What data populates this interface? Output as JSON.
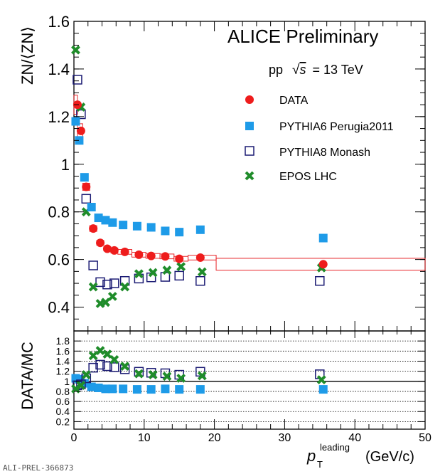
{
  "chart_data": [
    {
      "type": "scatter",
      "panel": "main",
      "title": "ALICE Preliminary",
      "subtitle_prefix": "pp",
      "subtitle_sqrt": "√",
      "subtitle_s": "s",
      "subtitle_suffix": "= 13 TeV",
      "ylabel": "ZN/⟨ZN⟩",
      "ylim": [
        0.3,
        1.6
      ],
      "xlim": [
        0,
        50
      ],
      "yticks": [
        "0.4",
        "0.6",
        "0.8",
        "1",
        "1.2",
        "1.4",
        "1.6"
      ],
      "xticks": [
        "0",
        "10",
        "20",
        "30",
        "40",
        "50"
      ],
      "legend": [
        {
          "key": "data",
          "label": "DATA"
        },
        {
          "key": "p6",
          "label": "PYTHIA6 Perugia2011"
        },
        {
          "key": "p8",
          "label": "PYTHIA8 Monash"
        },
        {
          "key": "epos",
          "label": "EPOS LHC"
        }
      ],
      "series": [
        {
          "name": "DATA",
          "key": "data",
          "color": "#ee1c1c",
          "marker": "circle",
          "x": [
            0.5,
            1.0,
            1.75,
            2.75,
            3.75,
            4.75,
            5.75,
            7.25,
            9.25,
            11.0,
            13.0,
            15.0,
            18.0,
            35.5
          ],
          "values": [
            1.25,
            1.14,
            0.905,
            0.73,
            0.67,
            0.645,
            0.638,
            0.632,
            0.62,
            0.615,
            0.613,
            0.603,
            0.608,
            0.58
          ]
        },
        {
          "name": "PYTHIA6 Perugia2011",
          "key": "p6",
          "color": "#1e9be8",
          "marker": "square",
          "x": [
            0.25,
            0.75,
            1.5,
            2.5,
            3.5,
            4.5,
            5.5,
            7.0,
            9.0,
            11.0,
            13.0,
            15.0,
            18.0,
            35.5
          ],
          "values": [
            1.18,
            1.1,
            0.945,
            0.82,
            0.775,
            0.765,
            0.755,
            0.745,
            0.74,
            0.735,
            0.72,
            0.715,
            0.725,
            0.69
          ]
        },
        {
          "name": "PYTHIA8 Monash",
          "key": "p8",
          "color": "#1c1c74",
          "marker": "open-square",
          "x": [
            0.5,
            1.0,
            1.75,
            2.75,
            3.75,
            4.75,
            5.75,
            7.25,
            9.25,
            11.0,
            13.0,
            15.0,
            18.0,
            35.0
          ],
          "values": [
            1.355,
            1.21,
            0.855,
            0.575,
            0.505,
            0.495,
            0.5,
            0.51,
            0.52,
            0.525,
            0.527,
            0.532,
            0.51,
            0.51
          ]
        },
        {
          "name": "EPOS LHC",
          "key": "epos",
          "color": "#1f8c2a",
          "marker": "x",
          "x": [
            0.25,
            1.0,
            1.75,
            2.75,
            3.75,
            4.5,
            5.5,
            7.25,
            9.25,
            11.25,
            13.25,
            15.25,
            18.25,
            35.25
          ],
          "values": [
            1.48,
            1.24,
            0.8,
            0.485,
            0.415,
            0.42,
            0.445,
            0.485,
            0.54,
            0.545,
            0.555,
            0.57,
            0.548,
            0.565
          ]
        }
      ],
      "data_systematics": [
        {
          "x": [
            0,
            0.5
          ],
          "y": [
            1.21,
            1.29
          ]
        },
        {
          "x": [
            0.5,
            1.25
          ],
          "y": [
            1.11,
            1.17
          ]
        },
        {
          "x": [
            1.25,
            2.25
          ],
          "y": [
            0.89,
            0.92
          ]
        },
        {
          "x": [
            2.25,
            3.25
          ],
          "y": [
            0.718,
            0.742
          ]
        },
        {
          "x": [
            3.25,
            4.25
          ],
          "y": [
            0.66,
            0.68
          ]
        },
        {
          "x": [
            4.25,
            5.25
          ],
          "y": [
            0.636,
            0.654
          ]
        },
        {
          "x": [
            5.25,
            6.25
          ],
          "y": [
            0.628,
            0.648
          ]
        },
        {
          "x": [
            6.25,
            8.25
          ],
          "y": [
            0.622,
            0.642
          ]
        },
        {
          "x": [
            8.25,
            10.25
          ],
          "y": [
            0.61,
            0.63
          ]
        },
        {
          "x": [
            10.25,
            12.25
          ],
          "y": [
            0.605,
            0.625
          ]
        },
        {
          "x": [
            12.25,
            14.25
          ],
          "y": [
            0.603,
            0.623
          ]
        },
        {
          "x": [
            14.25,
            16.25
          ],
          "y": [
            0.593,
            0.613
          ]
        },
        {
          "x": [
            16.25,
            20.25
          ],
          "y": [
            0.598,
            0.618
          ]
        },
        {
          "x": [
            20.25,
            50
          ],
          "y": [
            0.555,
            0.605
          ]
        }
      ]
    },
    {
      "type": "scatter",
      "panel": "ratio",
      "ylabel": "DATA/MC",
      "ylim": [
        0.05,
        2.0
      ],
      "xlim": [
        0,
        50
      ],
      "xlabel_p": "p",
      "xlabel_sub": "T",
      "xlabel_sup": "leading",
      "xlabel_unit": "(GeV/c)",
      "yticks": [
        "0.2",
        "0.4",
        "0.6",
        "0.8",
        "1",
        "1.2",
        "1.4",
        "1.6",
        "1.8"
      ],
      "xticks": [
        "0",
        "10",
        "20",
        "30",
        "40",
        "50"
      ],
      "reference_line": 1,
      "series": [
        {
          "name": "DATA/PYTHIA6 Perugia2011",
          "key": "p6",
          "color": "#1e9be8",
          "marker": "square",
          "x": [
            0.25,
            0.75,
            1.5,
            2.5,
            3.5,
            4.5,
            5.5,
            7.0,
            9.0,
            11.0,
            13.0,
            15.0,
            18.0,
            35.5
          ],
          "values": [
            1.06,
            1.04,
            0.96,
            0.89,
            0.87,
            0.85,
            0.85,
            0.85,
            0.84,
            0.84,
            0.85,
            0.84,
            0.84,
            0.84
          ]
        },
        {
          "name": "DATA/PYTHIA8 Monash",
          "key": "p8",
          "color": "#1c1c74",
          "marker": "open-square",
          "x": [
            0.5,
            1.0,
            1.75,
            2.75,
            3.75,
            4.75,
            5.75,
            7.25,
            9.25,
            11.0,
            13.0,
            15.0,
            18.0,
            35.0
          ],
          "values": [
            0.92,
            0.94,
            1.06,
            1.27,
            1.33,
            1.3,
            1.28,
            1.24,
            1.19,
            1.17,
            1.16,
            1.13,
            1.19,
            1.14
          ]
        },
        {
          "name": "DATA/EPOS LHC",
          "key": "epos",
          "color": "#1f8c2a",
          "marker": "x",
          "x": [
            0.25,
            1.0,
            1.75,
            2.75,
            3.75,
            4.75,
            5.75,
            7.25,
            9.25,
            11.25,
            13.25,
            15.25,
            18.25,
            35.25
          ],
          "values": [
            0.85,
            0.92,
            1.13,
            1.51,
            1.61,
            1.54,
            1.43,
            1.3,
            1.15,
            1.13,
            1.1,
            1.06,
            1.11,
            1.03
          ]
        }
      ]
    }
  ],
  "credit": "ALI-PREL-366873"
}
